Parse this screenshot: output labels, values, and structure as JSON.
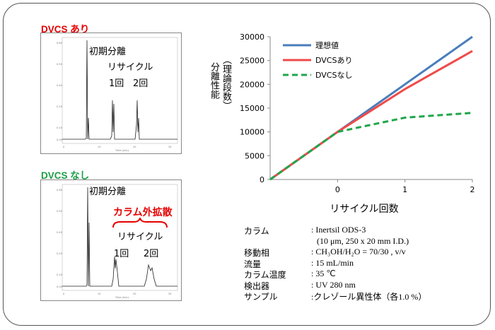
{
  "panel_top": {
    "title": "DVCS あり",
    "title_color": "#e60000",
    "label_initial": "初期分離",
    "label_recycle": "リサイクル",
    "label_cycle1": "1回",
    "label_cycle2": "2回"
  },
  "panel_bottom": {
    "title": "DVCS なし",
    "title_color": "#1a9e46",
    "label_initial": "初期分離",
    "label_dispersion": "カラム外拡散",
    "dispersion_color": "#e60000",
    "label_recycle": "リサイクル",
    "label_cycle1": "1回",
    "label_cycle2": "2回"
  },
  "chart_data": {
    "type": "line",
    "xlabel": "リサイクル回数",
    "ylabel_line1": "分離性能",
    "ylabel_line2": "（理論段数）",
    "x": [
      -1,
      0,
      1,
      2
    ],
    "x_ticks": [
      "0",
      "1",
      "2"
    ],
    "x_tick_values": [
      0,
      1,
      2
    ],
    "ylim": [
      0,
      30000
    ],
    "xlim": [
      -1,
      2
    ],
    "y_ticks": [
      "0",
      "5000",
      "10000",
      "15000",
      "20000",
      "25000",
      "30000"
    ],
    "y_tick_values": [
      0,
      5000,
      10000,
      15000,
      20000,
      25000,
      30000
    ],
    "legend_position": "top-left",
    "series": [
      {
        "name": "理想値",
        "values": [
          0,
          10000,
          20000,
          30000
        ],
        "color": "#4a7ebb",
        "dash": "solid"
      },
      {
        "name": "DVCSあり",
        "values": [
          0,
          10000,
          19000,
          27000
        ],
        "color": "#f04a4a",
        "dash": "solid"
      },
      {
        "name": "DVCSなし",
        "values": [
          0,
          10000,
          13000,
          14000
        ],
        "color": "#1fa64a",
        "dash": "dashed"
      }
    ]
  },
  "conditions": [
    {
      "label": "カラム",
      "value": ": Inertsil ODS-3"
    },
    {
      "label": "",
      "value": "(10 μm, 250 x 20 mm I.D.)"
    },
    {
      "label": "移動相",
      "value": ": CH₃OH/H₂O = 70/30 , v/v"
    },
    {
      "label": "流量",
      "value": ": 15 mL/min"
    },
    {
      "label": "カラム温度",
      "value": ": 35 ℃"
    },
    {
      "label": "検出器",
      "value": ": UV 280 nm"
    },
    {
      "label": "サンプル",
      "value": ":クレゾール異性体（各1.0 %）"
    }
  ]
}
